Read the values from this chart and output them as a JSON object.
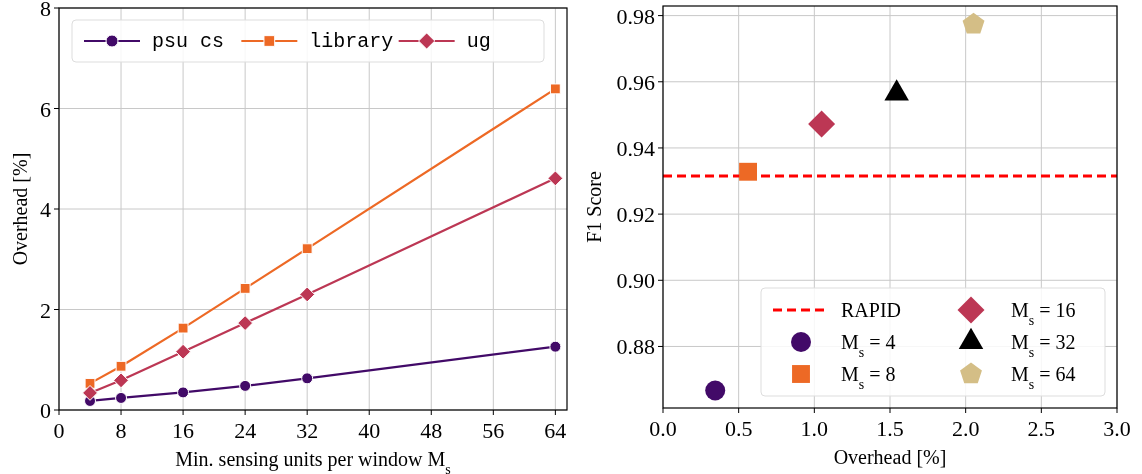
{
  "chart_data": [
    {
      "type": "line",
      "xlabel": "Min. sensing units per window M$_{s}$",
      "ylabel": "Overhead [%]",
      "x": [
        4,
        8,
        16,
        24,
        32,
        64
      ],
      "xlim": [
        0,
        65.5
      ],
      "xticks": [
        0,
        8,
        16,
        24,
        32,
        40,
        48,
        56,
        64
      ],
      "ylim": [
        0,
        8
      ],
      "yticks": [
        0,
        2,
        4,
        6,
        8
      ],
      "grid": true,
      "legend": "top",
      "series": [
        {
          "name": "psu cs",
          "color": "#420a68",
          "marker": "circle",
          "values": [
            0.18,
            0.24,
            0.35,
            0.48,
            0.63,
            1.26
          ]
        },
        {
          "name": "library",
          "color": "#ed6925",
          "marker": "square",
          "values": [
            0.53,
            0.87,
            1.63,
            2.42,
            3.21,
            6.39
          ]
        },
        {
          "name": "ug",
          "color": "#bc3754",
          "marker": "diamond",
          "values": [
            0.34,
            0.59,
            1.16,
            1.73,
            2.3,
            4.61
          ]
        }
      ]
    },
    {
      "type": "scatter",
      "xlabel": "Overhead [%]",
      "ylabel": "F1 Score",
      "xlim": [
        0,
        3
      ],
      "xticks": [
        {
          "value": 0,
          "label": "0.0"
        },
        {
          "value": 0.5,
          "label": "0.5"
        },
        {
          "value": 1,
          "label": "1.0"
        },
        {
          "value": 1.5,
          "label": "1.5"
        },
        {
          "value": 2,
          "label": "2.0"
        },
        {
          "value": 2.5,
          "label": "2.5"
        },
        {
          "value": 3,
          "label": "3.0"
        }
      ],
      "ylim": [
        0.8614,
        0.9829
      ],
      "yticks": [
        0.88,
        {
          "value": 0.9,
          "label": "0.90"
        },
        0.92,
        0.94,
        0.96,
        0.98
      ],
      "grid": true,
      "legend": "bottom right",
      "ref_lines": [
        {
          "axis": "y",
          "value": 0.9315,
          "label": "RAPID",
          "color": "#ff0000",
          "line_style": "dashed"
        }
      ],
      "series": [
        {
          "name": "M$_{s}$ = 4",
          "color": "#420a68",
          "marker": "circle",
          "x": [
            0.345
          ],
          "values": [
            0.8667
          ]
        },
        {
          "name": "M$_{s}$ = 8",
          "color": "#ed6925",
          "marker": "square",
          "x": [
            0.562
          ],
          "values": [
            0.9328
          ]
        },
        {
          "name": "M$_{s}$ = 16",
          "color": "#bc3754",
          "marker": "diamond",
          "x": [
            1.048
          ],
          "values": [
            0.9472
          ]
        },
        {
          "name": "M$_{s}$ = 32",
          "color": "#000000",
          "marker": "triangle",
          "x": [
            1.544
          ],
          "values": [
            0.9565
          ]
        },
        {
          "name": "M$_{s}$ = 64",
          "color": "#d4be86",
          "x": [
            2.052
          ],
          "values": [
            0.9774
          ]
        }
      ]
    }
  ]
}
